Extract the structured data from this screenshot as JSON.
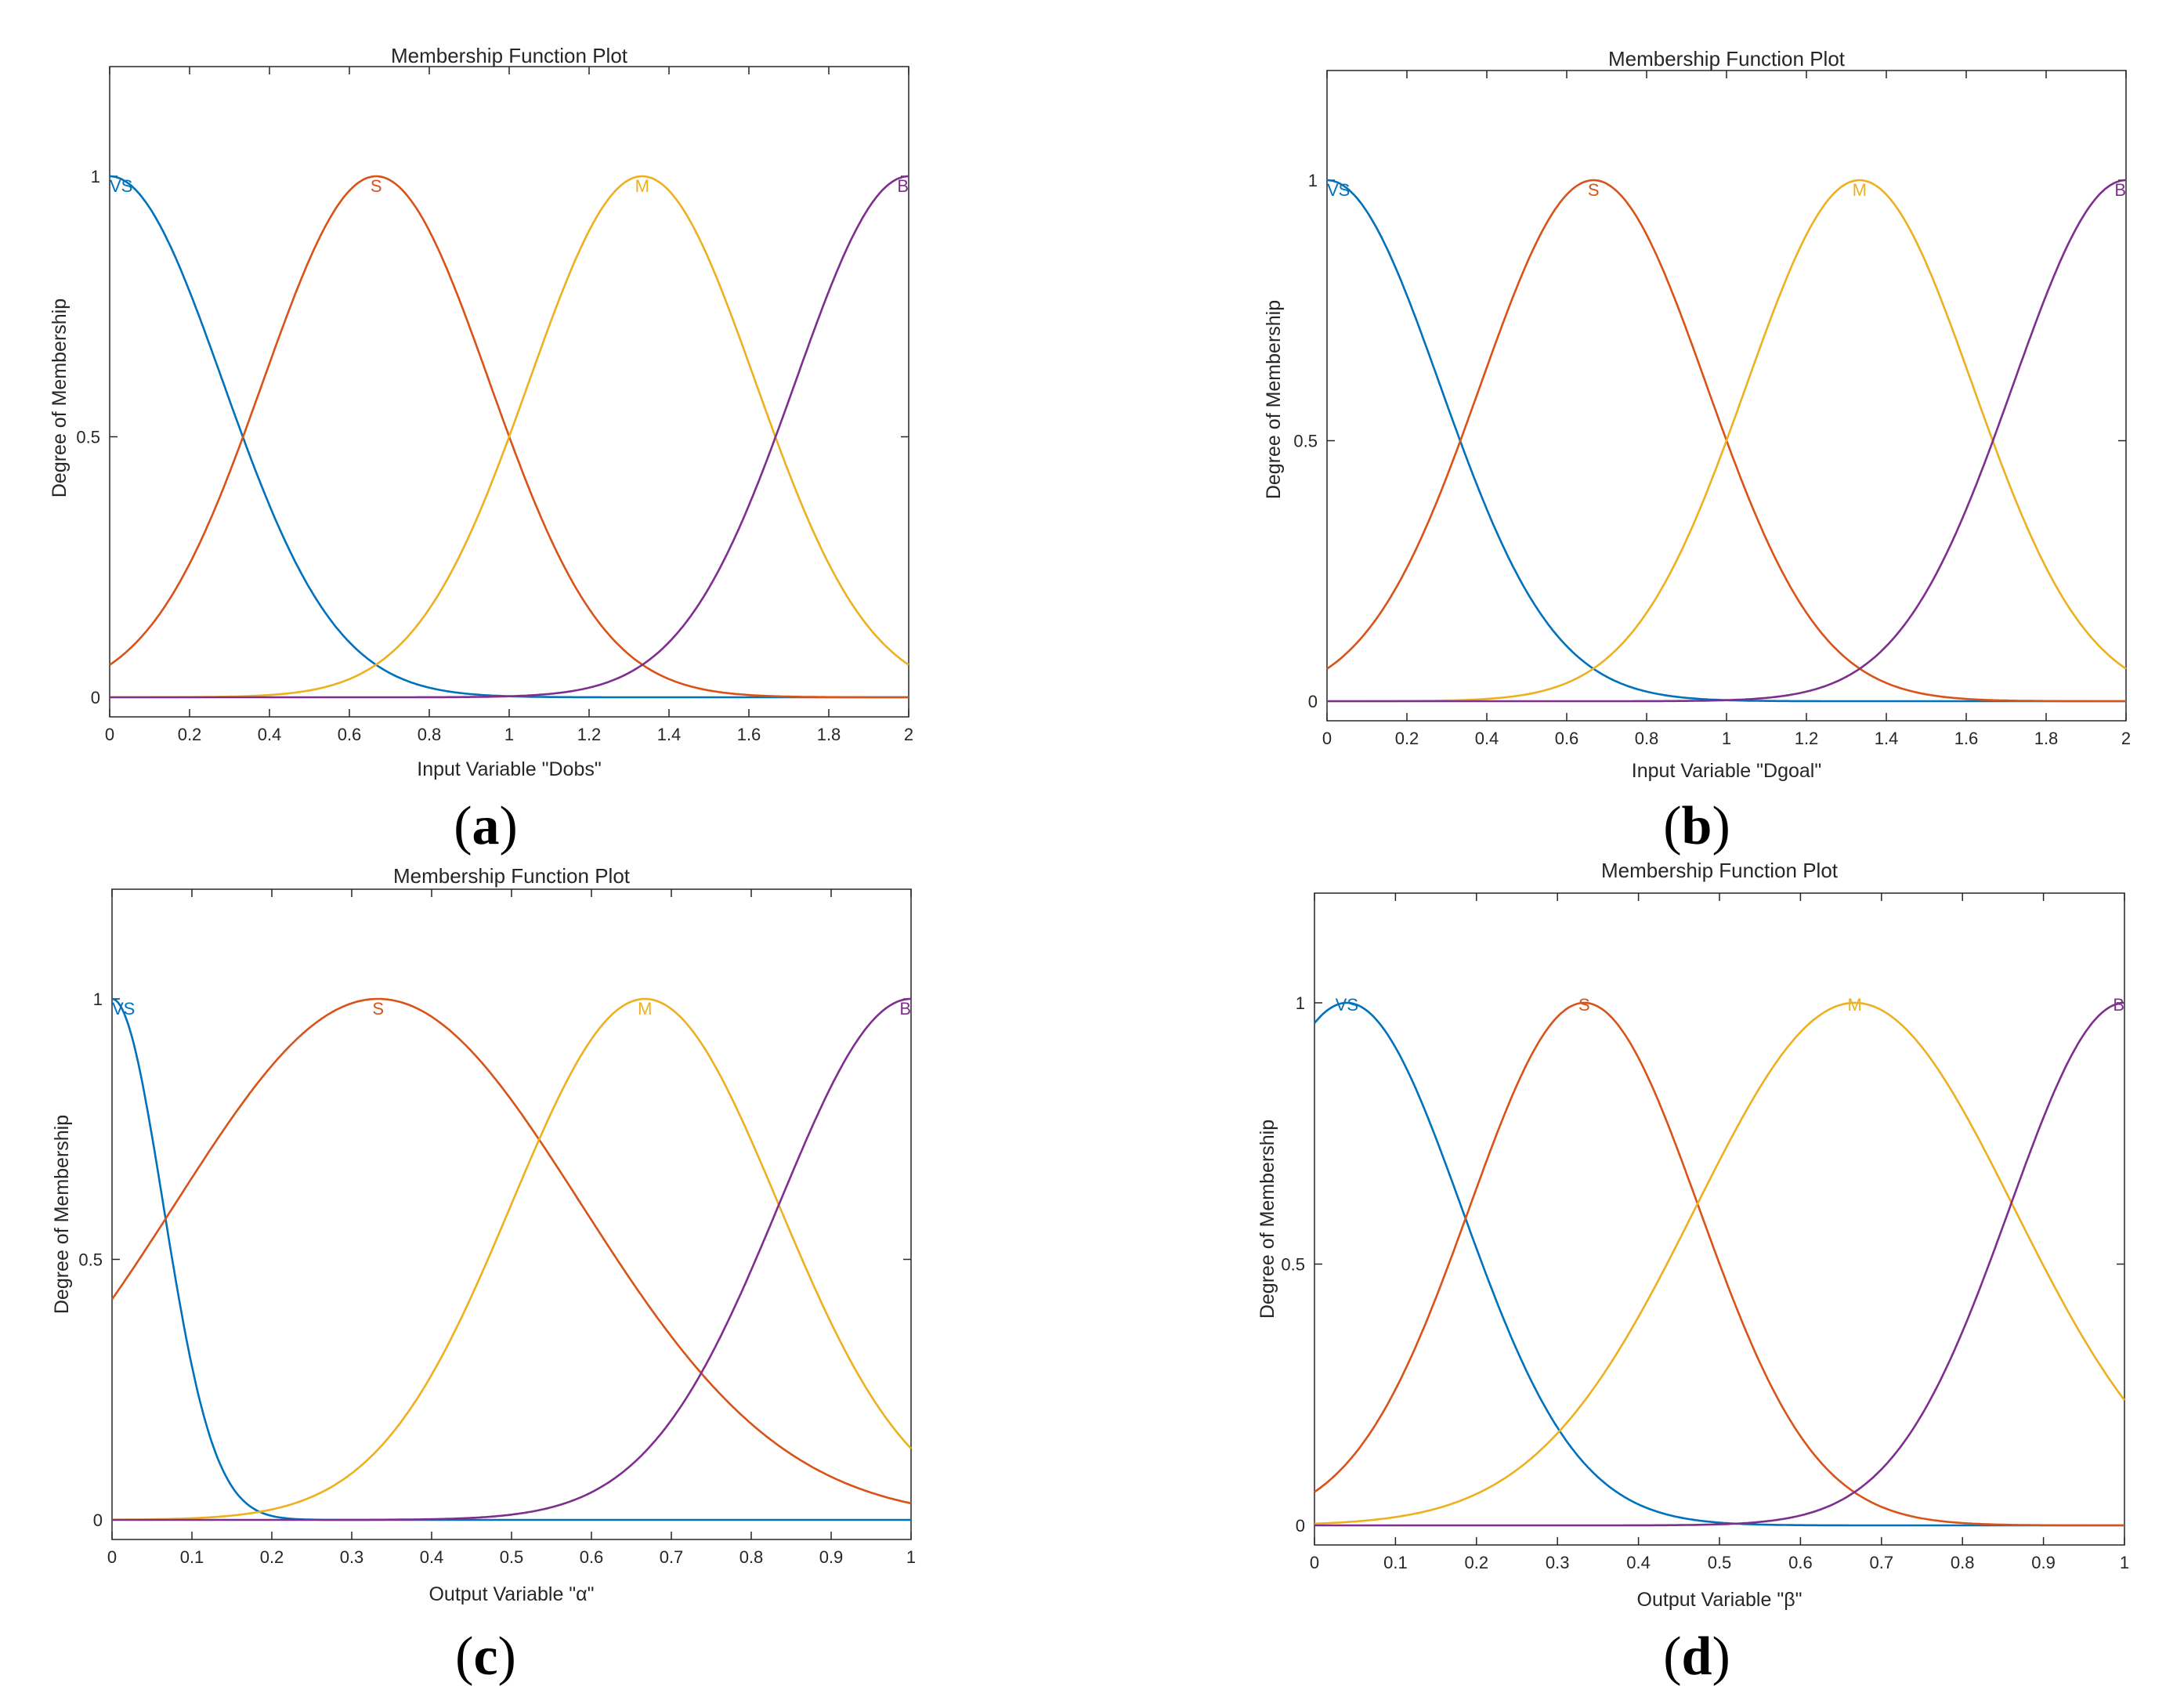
{
  "colors": {
    "VS": "#0072BD",
    "S": "#D95319",
    "M": "#EDB120",
    "B": "#7E2F8E"
  },
  "chart_data": [
    {
      "type": "line",
      "panel_label": "a",
      "title": "Membership Function Plot",
      "xlabel": "Input Variable \"Dobs\"",
      "ylabel": "Degree of Membership",
      "xlim": [
        0,
        2
      ],
      "ylim": [
        0,
        1
      ],
      "xticks": [
        "0",
        "0.2",
        "0.4",
        "0.6",
        "0.8",
        "1",
        "1.2",
        "1.4",
        "1.6",
        "1.8",
        "2"
      ],
      "yticks": [
        "0",
        "0.5",
        "1"
      ],
      "series": [
        {
          "name": "VS",
          "mf": "gaussmf",
          "center": 0.0,
          "sigma": 0.283,
          "label_x": 0.0
        },
        {
          "name": "S",
          "mf": "gaussmf",
          "center": 0.667,
          "sigma": 0.283,
          "label_x": 0.667
        },
        {
          "name": "M",
          "mf": "gaussmf",
          "center": 1.333,
          "sigma": 0.283,
          "label_x": 1.333
        },
        {
          "name": "B",
          "mf": "gaussmf",
          "center": 2.0,
          "sigma": 0.283,
          "label_x": 2.0
        }
      ]
    },
    {
      "type": "line",
      "panel_label": "b",
      "title": "Membership Function Plot",
      "xlabel": "Input Variable \"Dgoal\"",
      "ylabel": "Degree of Membership",
      "xlim": [
        0,
        2
      ],
      "ylim": [
        0,
        1
      ],
      "xticks": [
        "0",
        "0.2",
        "0.4",
        "0.6",
        "0.8",
        "1",
        "1.2",
        "1.4",
        "1.6",
        "1.8",
        "2"
      ],
      "yticks": [
        "0",
        "0.5",
        "1"
      ],
      "series": [
        {
          "name": "VS",
          "mf": "gaussmf",
          "center": 0.0,
          "sigma": 0.283,
          "label_x": 0.0
        },
        {
          "name": "S",
          "mf": "gaussmf",
          "center": 0.667,
          "sigma": 0.283,
          "label_x": 0.667
        },
        {
          "name": "M",
          "mf": "gaussmf",
          "center": 1.333,
          "sigma": 0.283,
          "label_x": 1.333
        },
        {
          "name": "B",
          "mf": "gaussmf",
          "center": 2.0,
          "sigma": 0.283,
          "label_x": 2.0
        }
      ]
    },
    {
      "type": "line",
      "panel_label": "c",
      "title": "Membership Function Plot",
      "xlabel": "Output Variable \"α\"",
      "ylabel": "Degree of Membership",
      "xlim": [
        0,
        1
      ],
      "ylim": [
        0,
        1
      ],
      "xticks": [
        "0",
        "0.1",
        "0.2",
        "0.3",
        "0.4",
        "0.5",
        "0.6",
        "0.7",
        "0.8",
        "0.9",
        "1"
      ],
      "yticks": [
        "0",
        "0.5",
        "1"
      ],
      "series": [
        {
          "name": "VS",
          "mf": "gaussmf",
          "center": 0.0,
          "sigma": 0.064,
          "label_x": 0.0
        },
        {
          "name": "S",
          "mf": "gaussmf",
          "center": 0.333,
          "sigma": 0.254,
          "label_x": 0.333
        },
        {
          "name": "M",
          "mf": "gaussmf",
          "center": 0.667,
          "sigma": 0.167,
          "label_x": 0.667
        },
        {
          "name": "B",
          "mf": "gaussmf",
          "center": 1.0,
          "sigma": 0.165,
          "label_x": 1.0
        }
      ]
    },
    {
      "type": "line",
      "panel_label": "d",
      "title": "Membership Function Plot",
      "xlabel": "Output Variable \"β\"",
      "ylabel": "Degree of Membership",
      "xlim": [
        0,
        1
      ],
      "ylim": [
        0,
        1
      ],
      "xticks": [
        "0",
        "0.1",
        "0.2",
        "0.3",
        "0.4",
        "0.5",
        "0.6",
        "0.7",
        "0.8",
        "0.9",
        "1"
      ],
      "yticks": [
        "0",
        "0.5",
        "1"
      ],
      "series": [
        {
          "name": "VS",
          "mf": "gaussmf",
          "center": 0.04,
          "sigma": 0.142,
          "label_x": 0.04
        },
        {
          "name": "S",
          "mf": "gaussmf",
          "center": 0.333,
          "sigma": 0.142,
          "label_x": 0.333
        },
        {
          "name": "M",
          "mf": "gaussmf",
          "center": 0.667,
          "sigma": 0.197,
          "label_x": 0.667
        },
        {
          "name": "B",
          "mf": "gaussmf",
          "center": 1.0,
          "sigma": 0.142,
          "label_x": 1.0
        }
      ]
    }
  ]
}
